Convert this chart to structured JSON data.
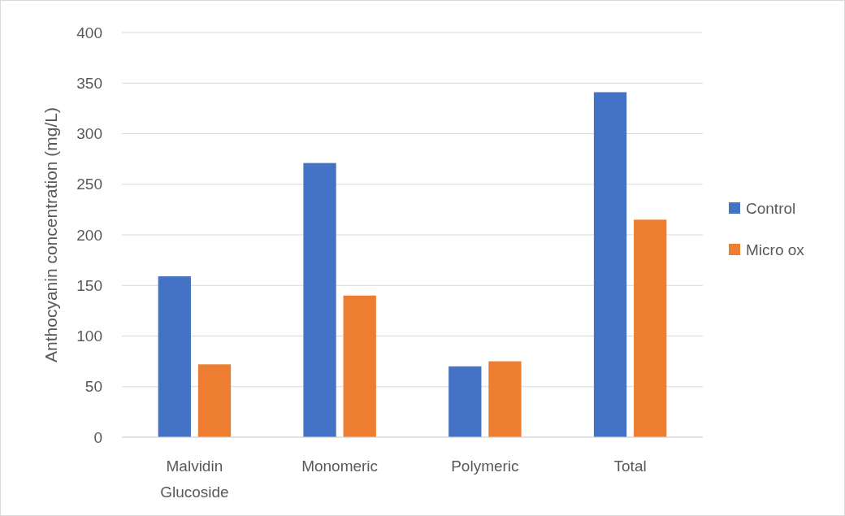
{
  "chart_data": {
    "type": "bar",
    "ylabel": "Anthocyanin concentration (mg/L)",
    "categories": [
      "Malvidin\nGlucoside",
      "Monomeric",
      "Polymeric",
      "Total"
    ],
    "series": [
      {
        "name": "Control",
        "color": "#4472c4",
        "values": [
          159,
          271,
          70,
          341
        ]
      },
      {
        "name": "Micro ox",
        "color": "#ed7d31",
        "values": [
          72,
          140,
          75,
          215
        ]
      }
    ],
    "ylim": [
      0,
      400
    ],
    "yticks": [
      0,
      50,
      100,
      150,
      200,
      250,
      300,
      350,
      400
    ],
    "grid": "y",
    "legend": "right"
  }
}
